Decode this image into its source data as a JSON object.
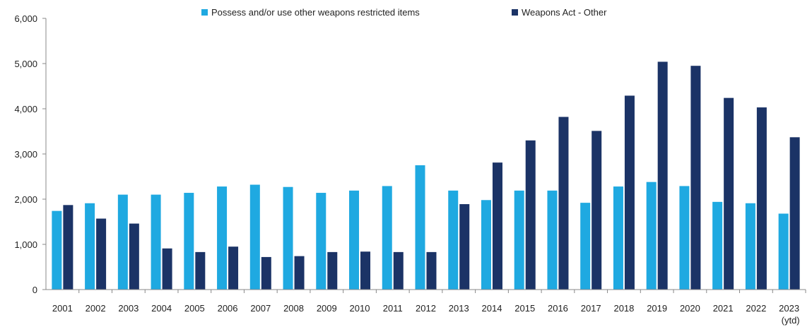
{
  "chart_data": {
    "type": "bar",
    "title": "",
    "xlabel": "",
    "ylabel": "",
    "ylim": [
      0,
      6000
    ],
    "yticks": [
      "0",
      "1,000",
      "2,000",
      "3,000",
      "4,000",
      "5,000",
      "6,000"
    ],
    "ytick_values": [
      0,
      1000,
      2000,
      3000,
      4000,
      5000,
      6000
    ],
    "categories": [
      "2001",
      "2002",
      "2003",
      "2004",
      "2005",
      "2006",
      "2007",
      "2008",
      "2009",
      "2010",
      "2011",
      "2012",
      "2013",
      "2014",
      "2015",
      "2016",
      "2017",
      "2018",
      "2019",
      "2020",
      "2021",
      "2022",
      "2023"
    ],
    "category_sublabels": {
      "2023": "(ytd)"
    },
    "legend_position": "top-center",
    "grid": false,
    "series": [
      {
        "name": "Possess and/or use other weapons restricted items",
        "color": "#1fa9e1",
        "values": [
          1740,
          1910,
          2100,
          2100,
          2140,
          2280,
          2320,
          2270,
          2140,
          2190,
          2290,
          2750,
          2190,
          1980,
          2190,
          2190,
          1920,
          2280,
          2380,
          2290,
          1940,
          1910,
          1680
        ]
      },
      {
        "name": "Weapons Act - Other",
        "color": "#1b3366",
        "values": [
          1870,
          1570,
          1460,
          910,
          830,
          950,
          720,
          740,
          830,
          840,
          830,
          830,
          1890,
          2810,
          3300,
          3820,
          3510,
          4290,
          5040,
          4950,
          4240,
          4030,
          3370
        ]
      }
    ]
  }
}
